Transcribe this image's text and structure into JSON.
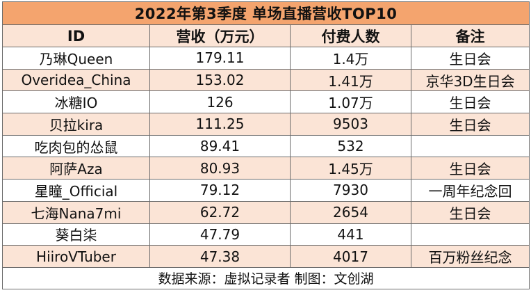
{
  "title": "2022年第3季度 单场直播营收TOP10",
  "headers": [
    "ID",
    "营收（万元）",
    "付费人数",
    "备注"
  ],
  "rows": [
    {
      "id": "乃琳Queen",
      "revenue": "179.11",
      "payers": "1.4万",
      "note": "生日会"
    },
    {
      "id": "Overidea_China",
      "revenue": "153.02",
      "payers": "1.41万",
      "note": "京华3D生日会"
    },
    {
      "id": "冰糖IO",
      "revenue": "126",
      "payers": "1.07万",
      "note": "生日会"
    },
    {
      "id": "贝拉kira",
      "revenue": "111.25",
      "payers": "9503",
      "note": "生日会"
    },
    {
      "id": "吃肉包的怂鼠",
      "revenue": "89.41",
      "payers": "532",
      "note": ""
    },
    {
      "id": "阿萨Aza",
      "revenue": "80.93",
      "payers": "1.45万",
      "note": "生日会"
    },
    {
      "id": "星瞳_Official",
      "revenue": "79.12",
      "payers": "7930",
      "note": "一周年纪念回"
    },
    {
      "id": "七海Nana7mi",
      "revenue": "62.72",
      "payers": "2654",
      "note": "生日会"
    },
    {
      "id": "葵白柒",
      "revenue": "47.79",
      "payers": "441",
      "note": ""
    },
    {
      "id": "HiiroVTuber",
      "revenue": "47.38",
      "payers": "4017",
      "note": "百万粉丝纪念"
    }
  ],
  "footer": "数据来源：虚拟记录者 制图：文创湖"
}
